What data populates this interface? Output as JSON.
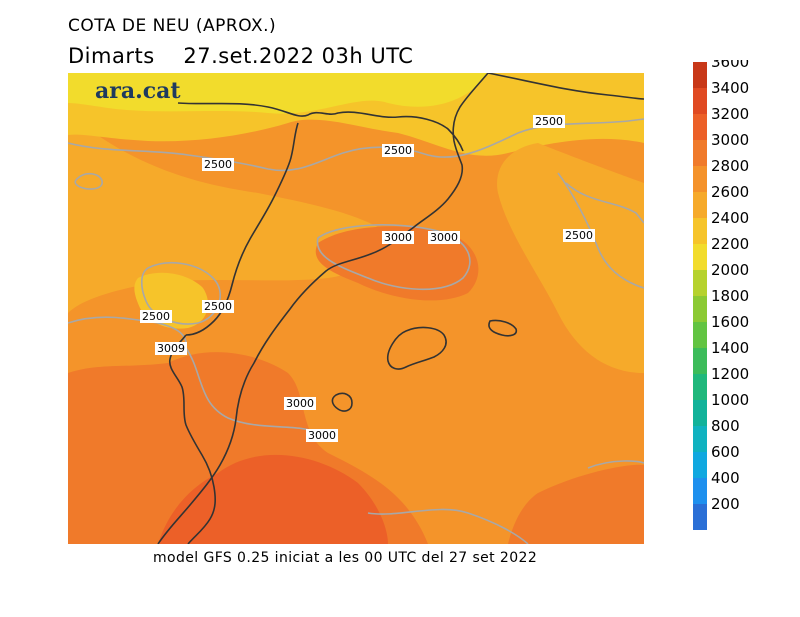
{
  "title": "COTA DE NEU (APROX.)",
  "day": "Dimarts",
  "date_time": "27.set.2022 03h UTC",
  "footer": "model GFS 0.25 iniciat a les 00 UTC del 27 set 2022",
  "brand": "ara.cat",
  "legend": {
    "values": [
      200,
      400,
      600,
      800,
      1000,
      1200,
      1400,
      1600,
      1800,
      2000,
      2200,
      2400,
      2600,
      2800,
      3000,
      3200,
      3400,
      3600
    ],
    "colors": [
      "#2a6fd6",
      "#1e90ee",
      "#10a8e0",
      "#10b2c0",
      "#12b29a",
      "#20b87c",
      "#3cbc5a",
      "#62c442",
      "#8cca34",
      "#b6d22e",
      "#f2dc2c",
      "#f6c42a",
      "#f6aa2a",
      "#f4922a",
      "#f07a2a",
      "#ec6028",
      "#e04a22",
      "#c83818"
    ]
  },
  "contour_labels": [
    {
      "text": "2500"
    },
    {
      "text": "2500"
    },
    {
      "text": "2500"
    },
    {
      "text": "2500"
    },
    {
      "text": "2500"
    },
    {
      "text": "2500"
    },
    {
      "text": "3000"
    },
    {
      "text": "3000"
    },
    {
      "text": "3009"
    },
    {
      "text": "3000"
    },
    {
      "text": "3000"
    }
  ]
}
